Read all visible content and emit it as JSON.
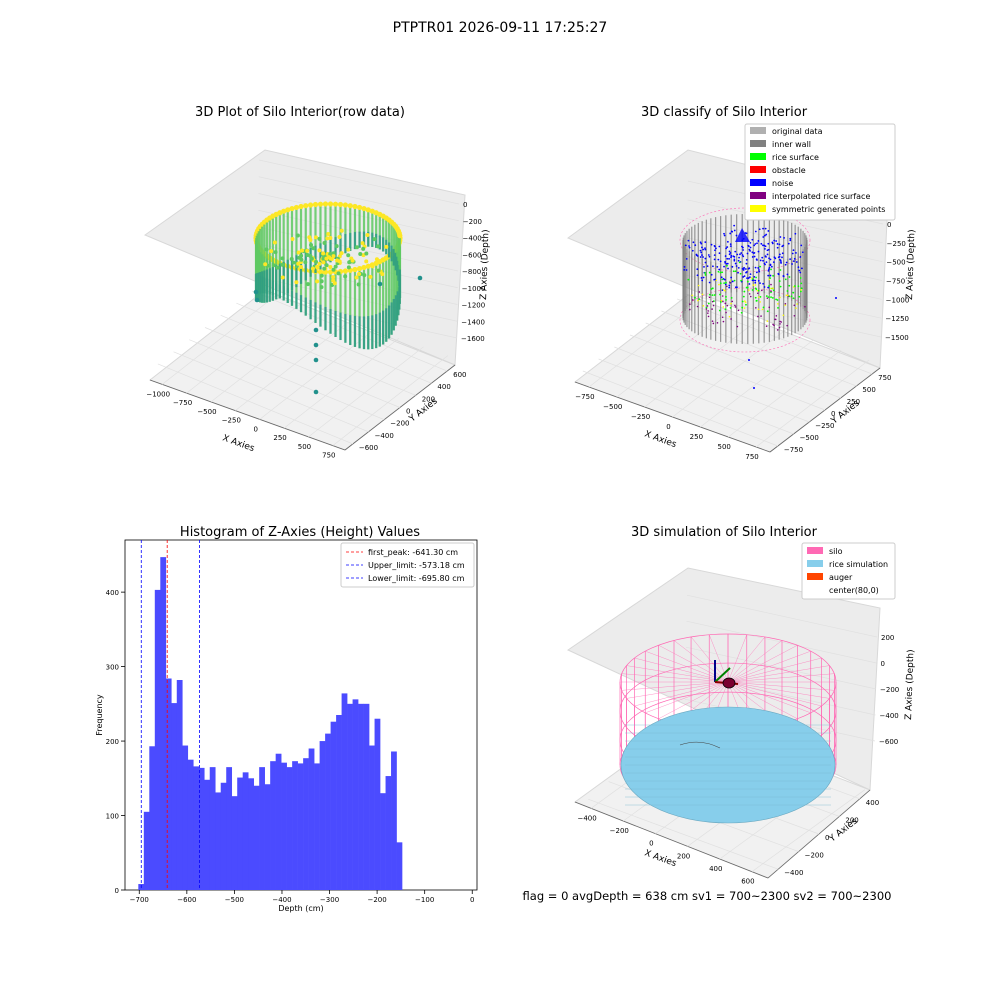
{
  "figure": {
    "suptitle": "PTPTR01 2026-09-11 17:25:27",
    "footer": "flag = 0     avgDepth = 638 cm  sv1 = 700~2300  sv2 = 700~2300"
  },
  "chart_data": [
    {
      "type": "scatter",
      "title": "3D Plot of Silo Interior(row data)",
      "xlabel": "X Axies",
      "ylabel": "Y Axies",
      "zlabel": "Z Axies (Depth)",
      "xticks": [
        "−1000",
        "−750",
        "−500",
        "−250",
        "0",
        "250",
        "500",
        "750"
      ],
      "yticks": [
        "−600",
        "−400",
        "−200",
        "0",
        "200",
        "400",
        "600"
      ],
      "zticks": [
        "0",
        "−200",
        "−400",
        "−600",
        "−800",
        "−1000",
        "−1200",
        "−1400",
        "−1600"
      ],
      "colormap": [
        "#440154",
        "#21918c",
        "#5ec962",
        "#fde725"
      ]
    },
    {
      "type": "scatter",
      "title": "3D classify of Silo Interior",
      "xlabel": "X Axies",
      "ylabel": "Y Axies",
      "zlabel": "Z Axies (Depth)",
      "xticks": [
        "−750",
        "−500",
        "−250",
        "0",
        "250",
        "500",
        "750"
      ],
      "yticks": [
        "−750",
        "−500",
        "−250",
        "0",
        "250",
        "500",
        "750"
      ],
      "zticks": [
        "0",
        "−250",
        "−500",
        "−750",
        "−1000",
        "−1250",
        "−1500"
      ],
      "legend_position": "top-right",
      "legend": [
        {
          "label": "original data",
          "color": "#b0b0b0"
        },
        {
          "label": "inner wall",
          "color": "#808080"
        },
        {
          "label": "rice surface",
          "color": "#00ff00"
        },
        {
          "label": "obstacle",
          "color": "#ff0000"
        },
        {
          "label": "noise",
          "color": "#0000ff"
        },
        {
          "label": "interpolated rice surface",
          "color": "#800080"
        },
        {
          "label": "symmetric generated points",
          "color": "#ffff00"
        }
      ]
    },
    {
      "type": "bar",
      "title": "Histogram of Z-Axies (Height) Values",
      "xlabel": "Depth (cm)",
      "ylabel": "Frequency",
      "xlim": [
        -730,
        10
      ],
      "ylim": [
        0,
        470
      ],
      "xticks": [
        "−700",
        "−600",
        "−500",
        "−400",
        "−300",
        "−200",
        "−100",
        "0"
      ],
      "yticks": [
        "0",
        "100",
        "200",
        "300",
        "400"
      ],
      "bar_color": "#4b4bff",
      "bin_start": -702,
      "bin_width": 11.55,
      "values": [
        8,
        105,
        193,
        403,
        447,
        284,
        251,
        282,
        194,
        175,
        166,
        164,
        148,
        165,
        131,
        144,
        165,
        126,
        151,
        158,
        150,
        140,
        165,
        142,
        173,
        183,
        171,
        165,
        173,
        170,
        177,
        190,
        170,
        200,
        210,
        226,
        235,
        264,
        250,
        256,
        250,
        250,
        194,
        230,
        130,
        153,
        186,
        64
      ],
      "vlines": [
        {
          "label": "first_peak: -641.30 cm",
          "value": -641.3,
          "color": "#ff0000"
        },
        {
          "label": "Upper_limit: -573.18 cm",
          "value": -573.18,
          "color": "#0000ff"
        },
        {
          "label": "Lower_limit: -695.80 cm",
          "value": -695.8,
          "color": "#0000ff"
        }
      ],
      "legend_position": "top-right"
    },
    {
      "type": "surface",
      "title": "3D simulation of Silo Interior",
      "xlabel": "X Axies",
      "ylabel": "Y Axies",
      "zlabel": "Z Axies (Depth)",
      "xticks": [
        "−400",
        "−200",
        "0",
        "200",
        "400",
        "600"
      ],
      "yticks": [
        "−400",
        "−200",
        "0",
        "200",
        "400"
      ],
      "zticks": [
        "200",
        "0",
        "−200",
        "−400",
        "−600"
      ],
      "legend_position": "top-right",
      "legend": [
        {
          "label": "silo",
          "color": "#ff69b4"
        },
        {
          "label": "rice simulation",
          "color": "#87ceeb"
        },
        {
          "label": "auger",
          "color": "#ff4500"
        },
        {
          "label": "center(80,0)",
          "color": "#ffffff"
        }
      ]
    }
  ]
}
